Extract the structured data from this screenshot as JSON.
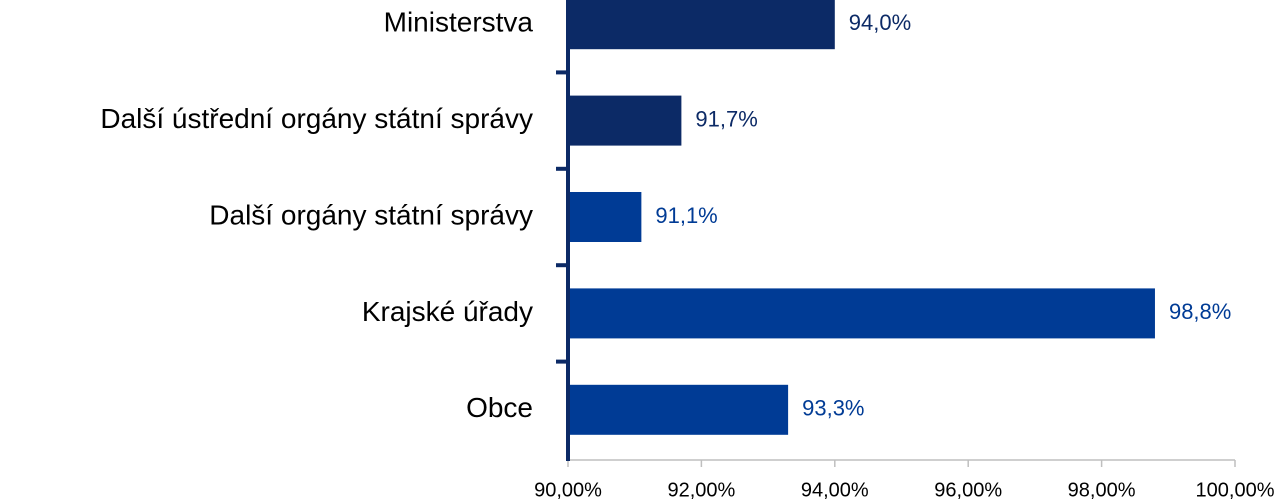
{
  "chart_data": {
    "type": "hbar",
    "categories": [
      "Ministerstva",
      "Další ústřední orgány státní správy",
      "Další orgány státní správy",
      "Krajské úřady",
      "Obce"
    ],
    "values": [
      94.0,
      91.7,
      91.1,
      98.8,
      93.3
    ],
    "value_labels": [
      "94,0%",
      "91,7%",
      "91,1%",
      "98,8%",
      "93,3%"
    ],
    "colors": [
      "#0c2a66",
      "#0c2a66",
      "#003b95",
      "#003b95",
      "#003b95"
    ],
    "xlim": [
      90,
      100
    ],
    "xticks": [
      {
        "value": 90,
        "label": "90,00%"
      },
      {
        "value": 92,
        "label": "92,00%"
      },
      {
        "value": 94,
        "label": "94,00%"
      },
      {
        "value": 96,
        "label": "96,00%"
      },
      {
        "value": 98,
        "label": "98,00%"
      },
      {
        "value": 100,
        "label": "100,00%"
      }
    ]
  }
}
